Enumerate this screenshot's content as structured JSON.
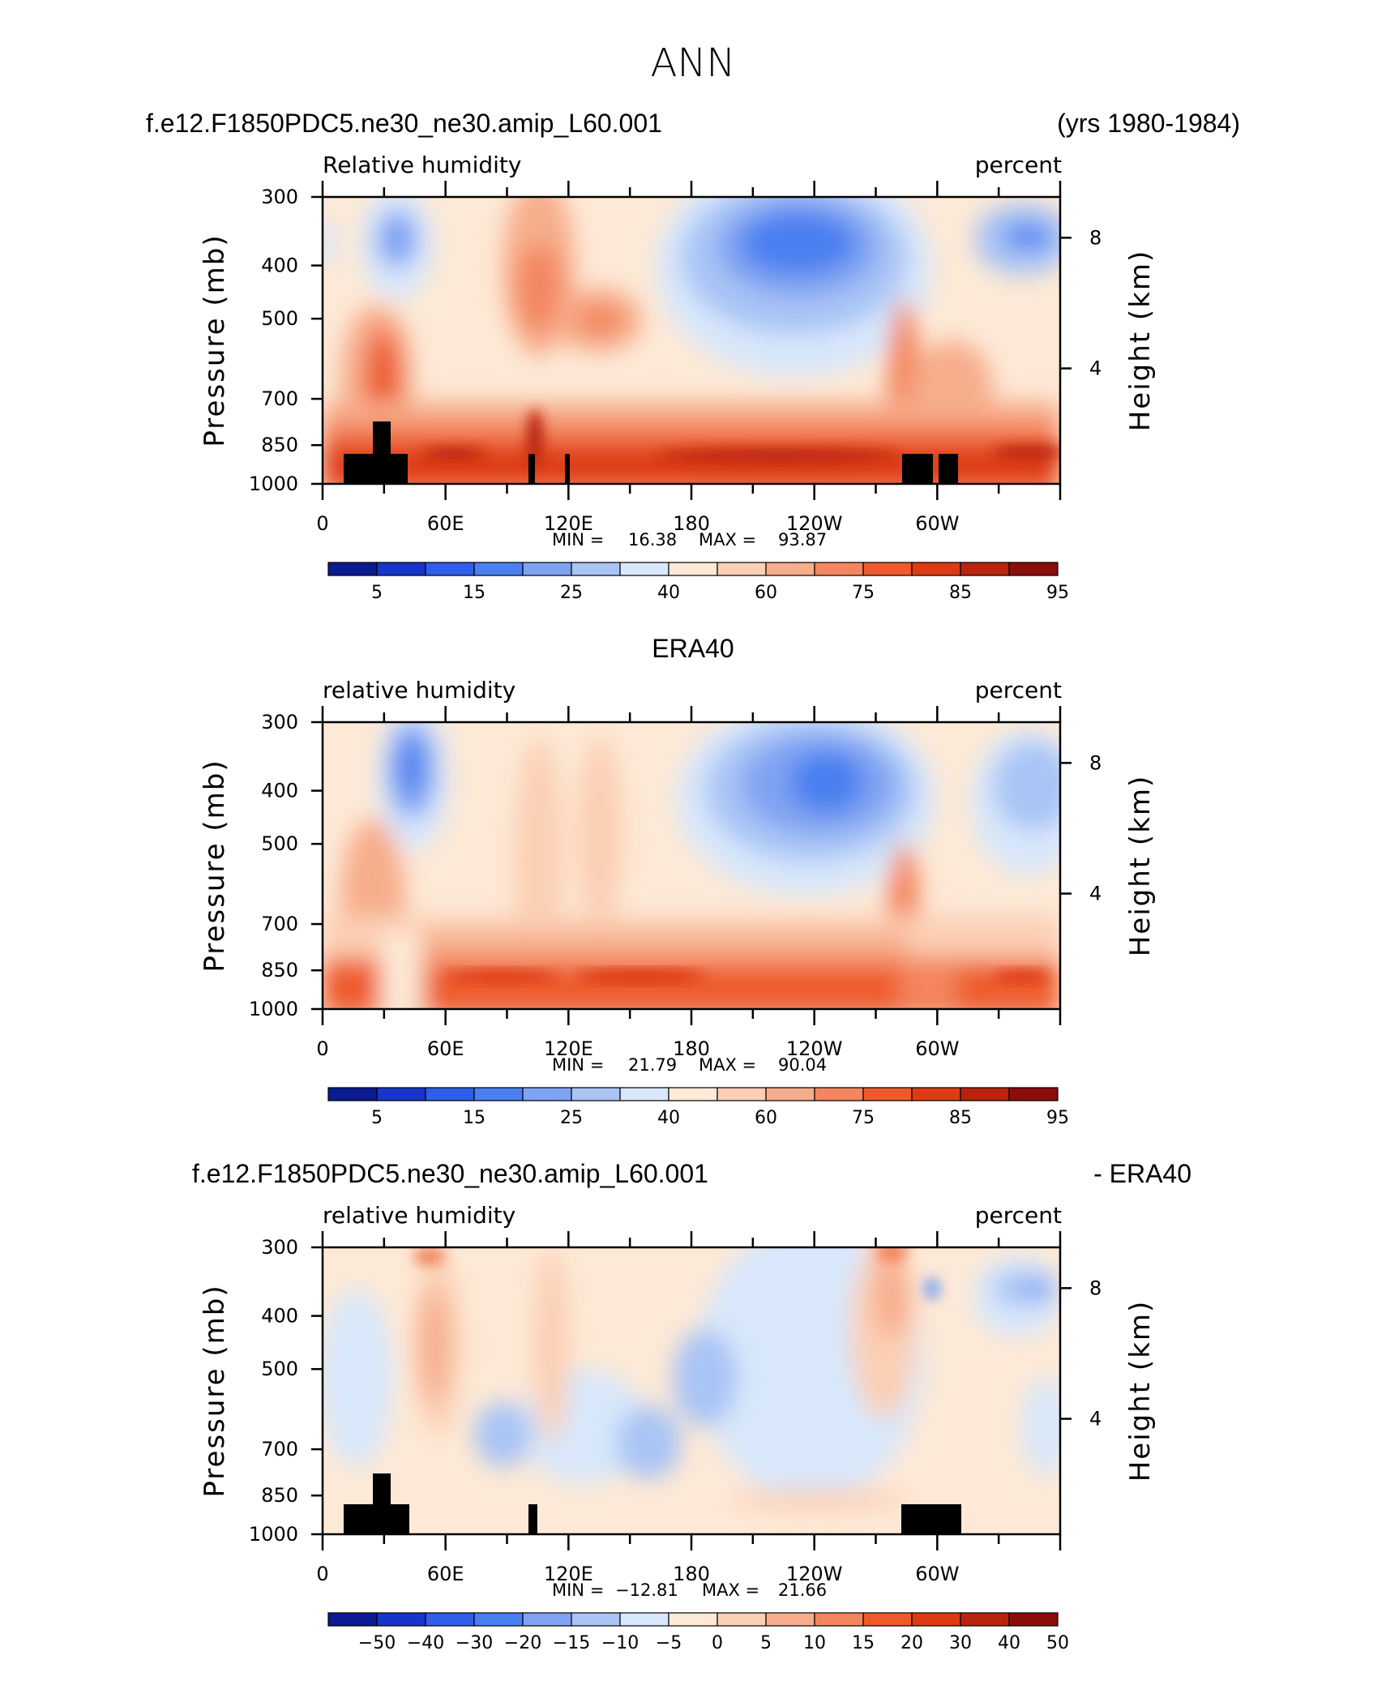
{
  "main_title": "ANN",
  "chart_data": [
    {
      "type": "heatmap",
      "id": "model",
      "title_left": "f.e12.F1850PDC5.ne30_ne30.amip_L60.001",
      "title_right": "(yrs 1980-1984)",
      "field": "Relative humidity",
      "units": "percent",
      "ylabel": "Pressure (mb)",
      "ylabel2": "Height (km)",
      "yticks": [
        "300",
        "400",
        "500",
        "700",
        "850",
        "1000"
      ],
      "ylim": [
        1000,
        300
      ],
      "yticks2": [
        "8",
        "4"
      ],
      "xticks": [
        "0",
        "60E",
        "120E",
        "180",
        "120W",
        "60W"
      ],
      "xlim": [
        0,
        360
      ],
      "min_label": "MIN =",
      "min": "16.38",
      "max_label": "MAX =",
      "max": "93.87",
      "colorbar_labels": [
        "5",
        "15",
        "25",
        "40",
        "60",
        "75",
        "85",
        "95"
      ],
      "colorbar_colors": [
        "#0a1c8f",
        "#1536c8",
        "#2f5ee8",
        "#4a7ff0",
        "#7fa3f2",
        "#a9c4f5",
        "#d8e7fb",
        "#fde9d6",
        "#fbcfb4",
        "#f7ad8c",
        "#f3865e",
        "#ee5a2c",
        "#dd3b14",
        "#b8240d",
        "#8a0e0a"
      ],
      "terrain": "mountains"
    },
    {
      "type": "heatmap",
      "id": "obs",
      "title_center": "ERA40",
      "field": "relative humidity",
      "units": "percent",
      "ylabel": "Pressure (mb)",
      "ylabel2": "Height (km)",
      "yticks": [
        "300",
        "400",
        "500",
        "700",
        "850",
        "1000"
      ],
      "ylim": [
        1000,
        300
      ],
      "yticks2": [
        "8",
        "4"
      ],
      "xticks": [
        "0",
        "60E",
        "120E",
        "180",
        "120W",
        "60W"
      ],
      "xlim": [
        0,
        360
      ],
      "min_label": "MIN =",
      "min": "21.79",
      "max_label": "MAX =",
      "max": "90.04",
      "colorbar_labels": [
        "5",
        "15",
        "25",
        "40",
        "60",
        "75",
        "85",
        "95"
      ],
      "colorbar_colors": [
        "#0a1c8f",
        "#1536c8",
        "#2f5ee8",
        "#4a7ff0",
        "#7fa3f2",
        "#a9c4f5",
        "#d8e7fb",
        "#fde9d6",
        "#fbcfb4",
        "#f7ad8c",
        "#f3865e",
        "#ee5a2c",
        "#dd3b14",
        "#b8240d",
        "#8a0e0a"
      ],
      "terrain": "none"
    },
    {
      "type": "heatmap",
      "id": "diff",
      "title_left": "f.e12.F1850PDC5.ne30_ne30.amip_L60.001",
      "title_right": "- ERA40",
      "field": "relative humidity",
      "units": "percent",
      "ylabel": "Pressure (mb)",
      "ylabel2": "Height (km)",
      "yticks": [
        "300",
        "400",
        "500",
        "700",
        "850",
        "1000"
      ],
      "ylim": [
        1000,
        300
      ],
      "yticks2": [
        "8",
        "4"
      ],
      "xticks": [
        "0",
        "60E",
        "120E",
        "180",
        "120W",
        "60W"
      ],
      "xlim": [
        0,
        360
      ],
      "min_label": "MIN =",
      "min": "−12.81",
      "max_label": "MAX =",
      "max": "21.66",
      "colorbar_labels": [
        "−50",
        "−40",
        "−30",
        "−20",
        "−15",
        "−10",
        "−5",
        "0",
        "5",
        "10",
        "15",
        "20",
        "30",
        "40",
        "50"
      ],
      "colorbar_colors": [
        "#0a1c8f",
        "#1536c8",
        "#2f5ee8",
        "#4a7ff0",
        "#7fa3f2",
        "#a9c4f5",
        "#d8e7fb",
        "#fde9d6",
        "#fbcfb4",
        "#f7ad8c",
        "#f3865e",
        "#ee5a2c",
        "#dd3b14",
        "#b8240d",
        "#8a0e0a"
      ],
      "terrain": "mountains"
    }
  ]
}
